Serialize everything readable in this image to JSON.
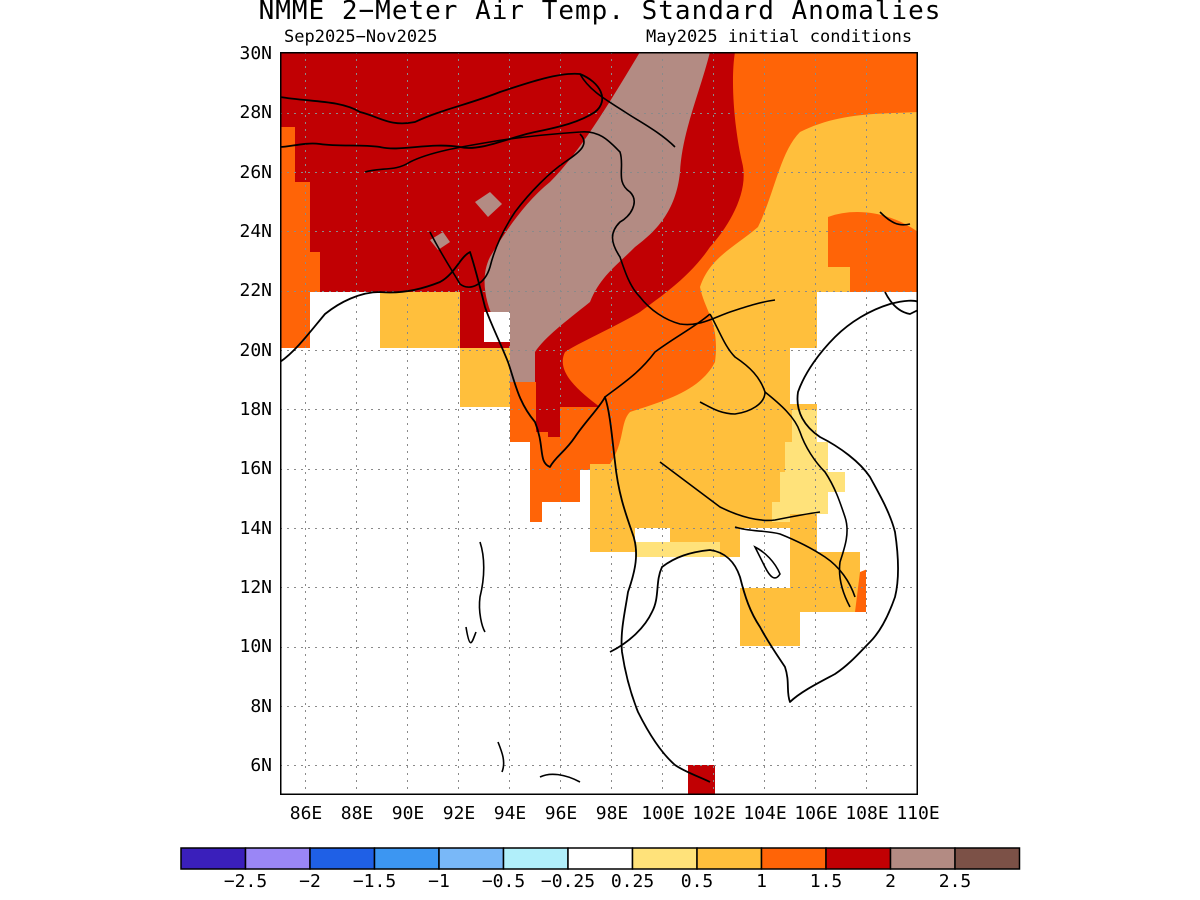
{
  "title": "NMME 2−Meter Air Temp. Standard Anomalies",
  "subtitle_left": "Sep2025−Nov2025",
  "subtitle_right": "May2025 initial conditions",
  "lat_labels": [
    "30N",
    "28N",
    "26N",
    "24N",
    "22N",
    "20N",
    "18N",
    "16N",
    "14N",
    "12N",
    "10N",
    "8N",
    "6N"
  ],
  "lon_labels": [
    "86E",
    "88E",
    "90E",
    "92E",
    "94E",
    "96E",
    "98E",
    "100E",
    "102E",
    "104E",
    "106E",
    "108E",
    "110E"
  ],
  "colorbar": {
    "colors": [
      "#3a1fbb",
      "#9a86f6",
      "#1f60e6",
      "#3c96f2",
      "#79b8f8",
      "#b1effa",
      "#ffffff",
      "#ffe27a",
      "#ffbf3c",
      "#ff6407",
      "#c10003",
      "#b38b83",
      "#7c5147"
    ],
    "labels": [
      "−2.5",
      "−2",
      "−1.5",
      "−1",
      "−0.5",
      "−0.25",
      "0.25",
      "0.5",
      "1",
      "1.5",
      "2",
      "2.5"
    ]
  },
  "map_data": {
    "region": {
      "lon_min": 85,
      "lon_max": 110,
      "lat_min": 5,
      "lat_max": 30
    },
    "gridlines": "dotted",
    "fill_levels": {
      "light_orange": 0.5,
      "orange": 1,
      "dark_orange": 1.5,
      "red": 2,
      "brown": 2.5
    }
  }
}
